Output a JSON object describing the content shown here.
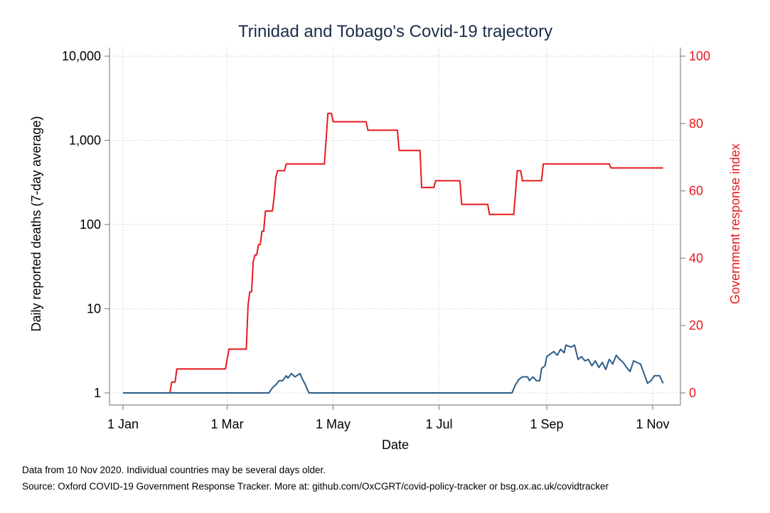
{
  "chart_data": {
    "type": "line",
    "title": "Trinidad and Tobago's Covid-19 trajectory",
    "xlabel": "Date",
    "ylabel": "Daily reported deaths (7-day average)",
    "y2label": "Government response index",
    "x_ticks": [
      "1 Jan",
      "1 Mar",
      "1 May",
      "1 Jul",
      "1 Sep",
      "1 Nov"
    ],
    "x_tick_dates": [
      "2020-01-01",
      "2020-03-01",
      "2020-05-01",
      "2020-07-01",
      "2020-09-01",
      "2020-11-01"
    ],
    "xlim": [
      "2020-01-01",
      "2020-11-10"
    ],
    "y_scale": "log",
    "ylim": [
      1,
      10000
    ],
    "y_ticks": [
      1,
      10,
      100,
      1000,
      10000
    ],
    "y_tick_labels": [
      "1",
      "10",
      "100",
      "1,000",
      "10,000"
    ],
    "y2lim": [
      0,
      100
    ],
    "y2_ticks": [
      0,
      20,
      40,
      60,
      80,
      100
    ],
    "grid": true,
    "colors": {
      "deaths": "#2a5d8a",
      "response": "#e8191c",
      "title": "#1a2e4a"
    },
    "series": [
      {
        "axis": "right",
        "points": [
          [
            "2020-01-01",
            0
          ],
          [
            "2020-01-28",
            0
          ],
          [
            "2020-01-29",
            3.2
          ],
          [
            "2020-01-31",
            3.2
          ],
          [
            "2020-02-01",
            7.1
          ],
          [
            "2020-02-29",
            7.1
          ],
          [
            "2020-03-02",
            13
          ],
          [
            "2020-03-12",
            13
          ],
          [
            "2020-03-13",
            26
          ],
          [
            "2020-03-14",
            30
          ],
          [
            "2020-03-15",
            30
          ],
          [
            "2020-03-16",
            39
          ],
          [
            "2020-03-17",
            41
          ],
          [
            "2020-03-18",
            41
          ],
          [
            "2020-03-19",
            44
          ],
          [
            "2020-03-20",
            44
          ],
          [
            "2020-03-21",
            48
          ],
          [
            "2020-03-22",
            48
          ],
          [
            "2020-03-23",
            54
          ],
          [
            "2020-03-27",
            54
          ],
          [
            "2020-03-28",
            58
          ],
          [
            "2020-03-29",
            64
          ],
          [
            "2020-03-30",
            66
          ],
          [
            "2020-04-03",
            66
          ],
          [
            "2020-04-04",
            68
          ],
          [
            "2020-04-26",
            68
          ],
          [
            "2020-04-28",
            83
          ],
          [
            "2020-04-30",
            83
          ],
          [
            "2020-05-01",
            80.5
          ],
          [
            "2020-05-20",
            80.5
          ],
          [
            "2020-05-21",
            78
          ],
          [
            "2020-06-07",
            78
          ],
          [
            "2020-06-08",
            72
          ],
          [
            "2020-06-20",
            72
          ],
          [
            "2020-06-21",
            61
          ],
          [
            "2020-06-28",
            61
          ],
          [
            "2020-06-29",
            63
          ],
          [
            "2020-07-13",
            63
          ],
          [
            "2020-07-14",
            56
          ],
          [
            "2020-07-29",
            56
          ],
          [
            "2020-07-30",
            53
          ],
          [
            "2020-08-13",
            53
          ],
          [
            "2020-08-15",
            66
          ],
          [
            "2020-08-17",
            66
          ],
          [
            "2020-08-18",
            63
          ],
          [
            "2020-08-29",
            63
          ],
          [
            "2020-08-30",
            68
          ],
          [
            "2020-10-07",
            68
          ],
          [
            "2020-10-08",
            66.8
          ],
          [
            "2020-11-07",
            66.8
          ]
        ]
      },
      {
        "axis": "left",
        "points": [
          [
            "2020-01-01",
            1
          ],
          [
            "2020-03-25",
            1
          ],
          [
            "2020-03-27",
            1.15
          ],
          [
            "2020-03-29",
            1.25
          ],
          [
            "2020-03-31",
            1.4
          ],
          [
            "2020-04-02",
            1.4
          ],
          [
            "2020-04-04",
            1.6
          ],
          [
            "2020-04-05",
            1.5
          ],
          [
            "2020-04-07",
            1.7
          ],
          [
            "2020-04-09",
            1.55
          ],
          [
            "2020-04-12",
            1.7
          ],
          [
            "2020-04-13",
            1.5
          ],
          [
            "2020-04-15",
            1.25
          ],
          [
            "2020-04-17",
            1
          ],
          [
            "2020-08-12",
            1
          ],
          [
            "2020-08-14",
            1.25
          ],
          [
            "2020-08-16",
            1.45
          ],
          [
            "2020-08-18",
            1.55
          ],
          [
            "2020-08-21",
            1.55
          ],
          [
            "2020-08-22",
            1.4
          ],
          [
            "2020-08-24",
            1.55
          ],
          [
            "2020-08-26",
            1.4
          ],
          [
            "2020-08-28",
            1.4
          ],
          [
            "2020-08-29",
            1.95
          ],
          [
            "2020-08-31",
            2.1
          ],
          [
            "2020-09-01",
            2.7
          ],
          [
            "2020-09-03",
            2.9
          ],
          [
            "2020-09-05",
            3.1
          ],
          [
            "2020-09-07",
            2.8
          ],
          [
            "2020-09-09",
            3.3
          ],
          [
            "2020-09-11",
            3.0
          ],
          [
            "2020-09-12",
            3.7
          ],
          [
            "2020-09-15",
            3.5
          ],
          [
            "2020-09-17",
            3.7
          ],
          [
            "2020-09-19",
            2.5
          ],
          [
            "2020-09-21",
            2.7
          ],
          [
            "2020-09-23",
            2.4
          ],
          [
            "2020-09-25",
            2.5
          ],
          [
            "2020-09-27",
            2.1
          ],
          [
            "2020-09-29",
            2.4
          ],
          [
            "2020-10-01",
            2.0
          ],
          [
            "2020-10-03",
            2.3
          ],
          [
            "2020-10-05",
            1.9
          ],
          [
            "2020-10-07",
            2.5
          ],
          [
            "2020-10-09",
            2.2
          ],
          [
            "2020-10-11",
            2.8
          ],
          [
            "2020-10-13",
            2.5
          ],
          [
            "2020-10-15",
            2.3
          ],
          [
            "2020-10-17",
            2.0
          ],
          [
            "2020-10-19",
            1.8
          ],
          [
            "2020-10-21",
            2.4
          ],
          [
            "2020-10-23",
            2.3
          ],
          [
            "2020-10-25",
            2.2
          ],
          [
            "2020-10-27",
            1.7
          ],
          [
            "2020-10-29",
            1.3
          ],
          [
            "2020-10-31",
            1.4
          ],
          [
            "2020-11-02",
            1.6
          ],
          [
            "2020-11-05",
            1.6
          ],
          [
            "2020-11-07",
            1.3
          ]
        ]
      }
    ]
  },
  "notes": {
    "line1": "Data from 10 Nov 2020. Individual countries may be several days older.",
    "line2": "Source: Oxford COVID-19 Government Response Tracker. More at: github.com/OxCGRT/covid-policy-tracker or bsg.ox.ac.uk/covidtracker"
  }
}
